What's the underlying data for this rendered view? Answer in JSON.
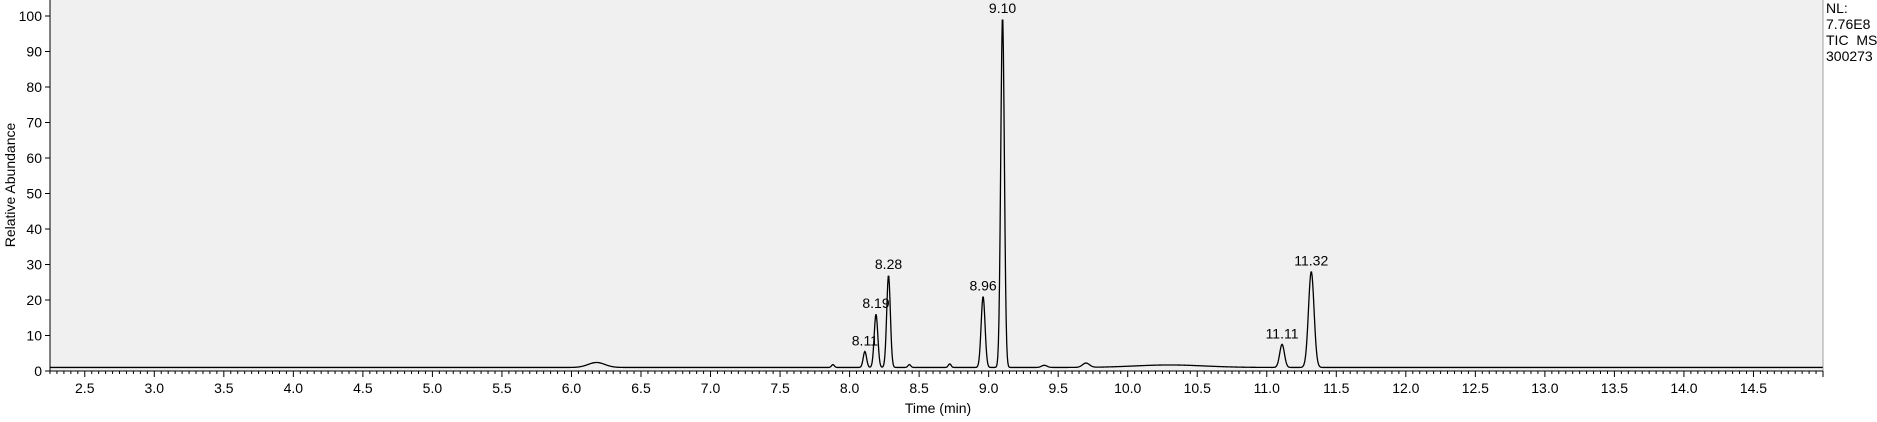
{
  "chart_data": {
    "type": "line",
    "xlabel": "Time (min)",
    "ylabel": "Relative Abundance",
    "xlim": [
      2.25,
      15.0
    ],
    "ylim": [
      0,
      100
    ],
    "x_ticks": [
      "2.5",
      "3.0",
      "3.5",
      "4.0",
      "4.5",
      "5.0",
      "5.5",
      "6.0",
      "6.5",
      "7.0",
      "7.5",
      "8.0",
      "8.5",
      "9.0",
      "9.5",
      "10.0",
      "10.5",
      "11.0",
      "11.5",
      "12.0",
      "12.5",
      "13.0",
      "13.5",
      "14.0",
      "14.5"
    ],
    "y_ticks": [
      "0",
      "10",
      "20",
      "30",
      "40",
      "50",
      "60",
      "70",
      "80",
      "90",
      "100"
    ],
    "baseline": 1,
    "peaks": [
      {
        "rt": 6.18,
        "height": 1.4,
        "width": 0.06,
        "label": ""
      },
      {
        "rt": 7.88,
        "height": 0.8,
        "width": 0.01,
        "label": ""
      },
      {
        "rt": 8.11,
        "height": 4.5,
        "width": 0.012,
        "label": "8.11"
      },
      {
        "rt": 8.19,
        "height": 15,
        "width": 0.013,
        "label": "8.19"
      },
      {
        "rt": 8.28,
        "height": 26,
        "width": 0.013,
        "label": "8.28"
      },
      {
        "rt": 8.43,
        "height": 0.8,
        "width": 0.01,
        "label": ""
      },
      {
        "rt": 8.72,
        "height": 1.0,
        "width": 0.01,
        "label": ""
      },
      {
        "rt": 8.96,
        "height": 20,
        "width": 0.014,
        "label": "8.96"
      },
      {
        "rt": 9.1,
        "height": 99,
        "width": 0.013,
        "label": "9.10"
      },
      {
        "rt": 9.4,
        "height": 0.6,
        "width": 0.02,
        "label": ""
      },
      {
        "rt": 9.7,
        "height": 1.2,
        "width": 0.025,
        "label": ""
      },
      {
        "rt": 10.3,
        "height": 0.7,
        "width": 0.25,
        "label": ""
      },
      {
        "rt": 11.11,
        "height": 6.5,
        "width": 0.017,
        "label": "11.11"
      },
      {
        "rt": 11.32,
        "height": 27,
        "width": 0.02,
        "label": "11.32"
      }
    ]
  },
  "side_info": {
    "nl_label": "NL:",
    "nl_value": "7.76E8",
    "scan_filter": "TIC  MS",
    "sample_id": "300273"
  }
}
